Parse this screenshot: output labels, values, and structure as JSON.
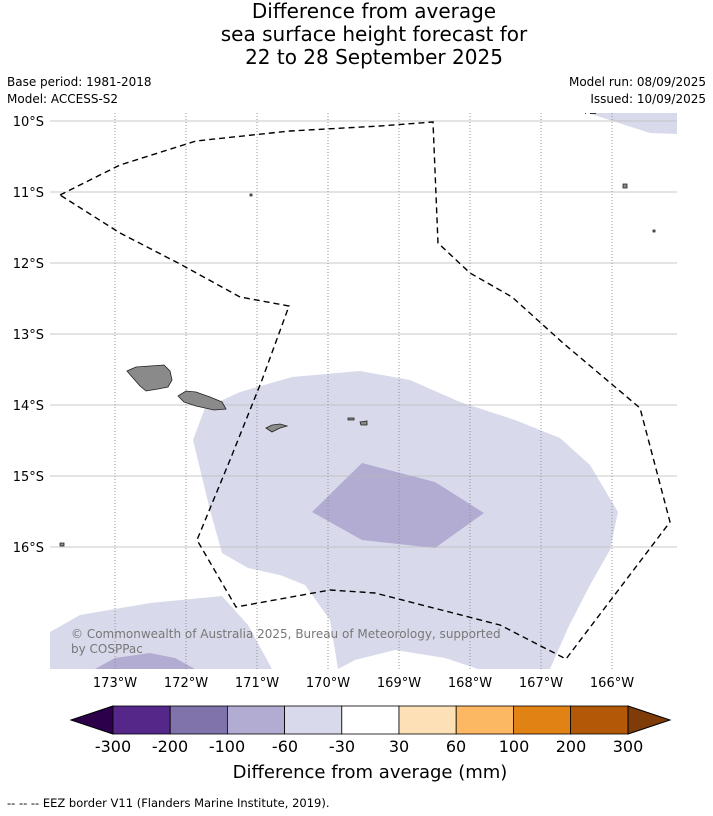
{
  "title_lines": [
    "Difference from average",
    "sea surface height forecast for",
    "22 to 28 September 2025"
  ],
  "meta": {
    "base_period": "Base period: 1981-2018",
    "model": "Model: ACCESS-S2",
    "model_run": "Model run: 08/09/2025",
    "issued": "Issued: 10/09/2025"
  },
  "map": {
    "lon_labels": [
      "173°W",
      "172°W",
      "171°W",
      "170°W",
      "169°W",
      "168°W",
      "167°W",
      "166°W"
    ],
    "lat_labels": [
      "10°S",
      "11°S",
      "12°S",
      "13°S",
      "14°S",
      "15°S",
      "16°S"
    ],
    "copyright_lines": [
      "© Commonwealth of Australia 2025, Bureau of Meteorology, supported",
      "by COSPPac"
    ]
  },
  "legend": {
    "tick_labels": [
      "-300",
      "-200",
      "-100",
      "-60",
      "-30",
      "30",
      "60",
      "100",
      "200",
      "300"
    ],
    "title": "Difference from average (mm)",
    "colors": [
      "#2d004b",
      "#542788",
      "#8073ac",
      "#b2abd2",
      "#d8daeb",
      "#ffffff",
      "#fee0b6",
      "#fdb863",
      "#e08214",
      "#b35806",
      "#7f3b08"
    ]
  },
  "footnote": "--  --  -- EEZ border V11 (Flanders Marine Institute, 2019)."
}
